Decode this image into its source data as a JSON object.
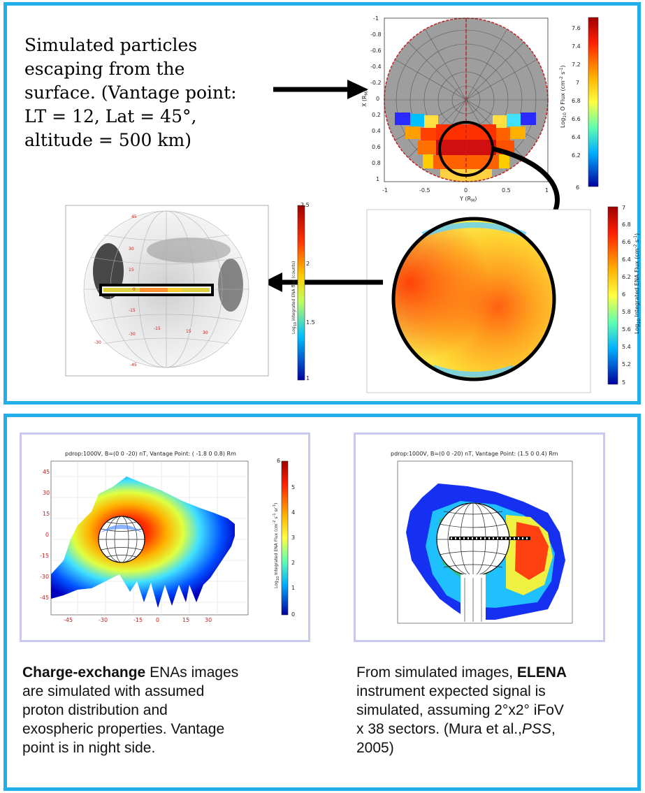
{
  "top": {
    "caption_line1": "Simulated particles",
    "caption_line2": "escaping from the",
    "caption_line3": "surface. (Vantage point:",
    "caption_line4": "LT = 12, Lat = 45°,",
    "caption_line5": "altitude = 500 km)",
    "polar_plot": {
      "x_axis_label": "Y (R",
      "x_axis_label_sub": "M",
      "y_axis_label": "X (R",
      "x_ticks": [
        "-1",
        "-0.5",
        "0",
        "0.5",
        "1"
      ],
      "y_ticks": [
        "-1",
        "-0.8",
        "-0.6",
        "-0.4",
        "-0.2",
        "0",
        "0.2",
        "0.4",
        "0.6",
        "0.8",
        "1"
      ],
      "colorbar_label": "Log",
      "colorbar_label_rest": " O Flux (cm",
      "colorbar_ticks": [
        "7.6",
        "7.4",
        "7.2",
        "7",
        "6.8",
        "6.6",
        "6.4",
        "6.2",
        "6"
      ]
    },
    "planet_image": {
      "colorbar_label": "Log",
      "colorbar_label_rest": " Integrated ENA Flux (cm",
      "colorbar_ticks": [
        "7",
        "6.8",
        "6.6",
        "6.4",
        "6.2",
        "6",
        "5.8",
        "5.6",
        "5.4",
        "5.2",
        "5"
      ]
    },
    "counts_image": {
      "colorbar_label": "Log",
      "colorbar_label_rest": " integrated ENA flux (counts)",
      "colorbar_ticks": [
        "2.5",
        "2",
        "1.5",
        "1"
      ],
      "grid_labels": [
        "45",
        "30",
        "15",
        "0",
        "-15",
        "-30",
        "-45",
        "15",
        "30",
        "-30",
        "-15"
      ]
    }
  },
  "bottom": {
    "left_sim": {
      "title": "pdrop:1000V, B=(0   0 -20) nT, Vantage Point: ( -1.8        0        0.8) Rm",
      "colorbar_label": "Log",
      "colorbar_label_rest": " Integrated ENA Flux (cm",
      "colorbar_ticks": [
        "6",
        "5",
        "4",
        "3",
        "2",
        "1",
        "0"
      ],
      "y_ticks": [
        "45",
        "30",
        "15",
        "0",
        "-15",
        "-30",
        "-45"
      ],
      "x_ticks": [
        "-45",
        "-30",
        "-15",
        "0",
        "15",
        "30"
      ]
    },
    "right_sim": {
      "title": "pdrop:1000V, B=(0   0 -20) nT, Vantage Point: (1.5        0        0.4) Rm"
    },
    "left_caption": {
      "bold": "Charge-exchange",
      "line1_rest": " ENAs images",
      "line2": "are simulated  with assumed",
      "line3": "proton distribution and",
      "line4": "exospheric properties. Vantage",
      "line5": "point is in night side."
    },
    "right_caption": {
      "line1_start": "From simulated images, ",
      "bold": "ELENA",
      "line2": "instrument expected signal is",
      "line3": "simulated, assuming 2°x2° iFoV",
      "line4_start": "x 38 sectors. (Mura et al.,",
      "line4_italic": "PSS",
      "line4_end": ",",
      "line5": "2005)"
    }
  },
  "colors": {
    "frame": "#22aee8",
    "sim_border": "#c9c9ef"
  }
}
